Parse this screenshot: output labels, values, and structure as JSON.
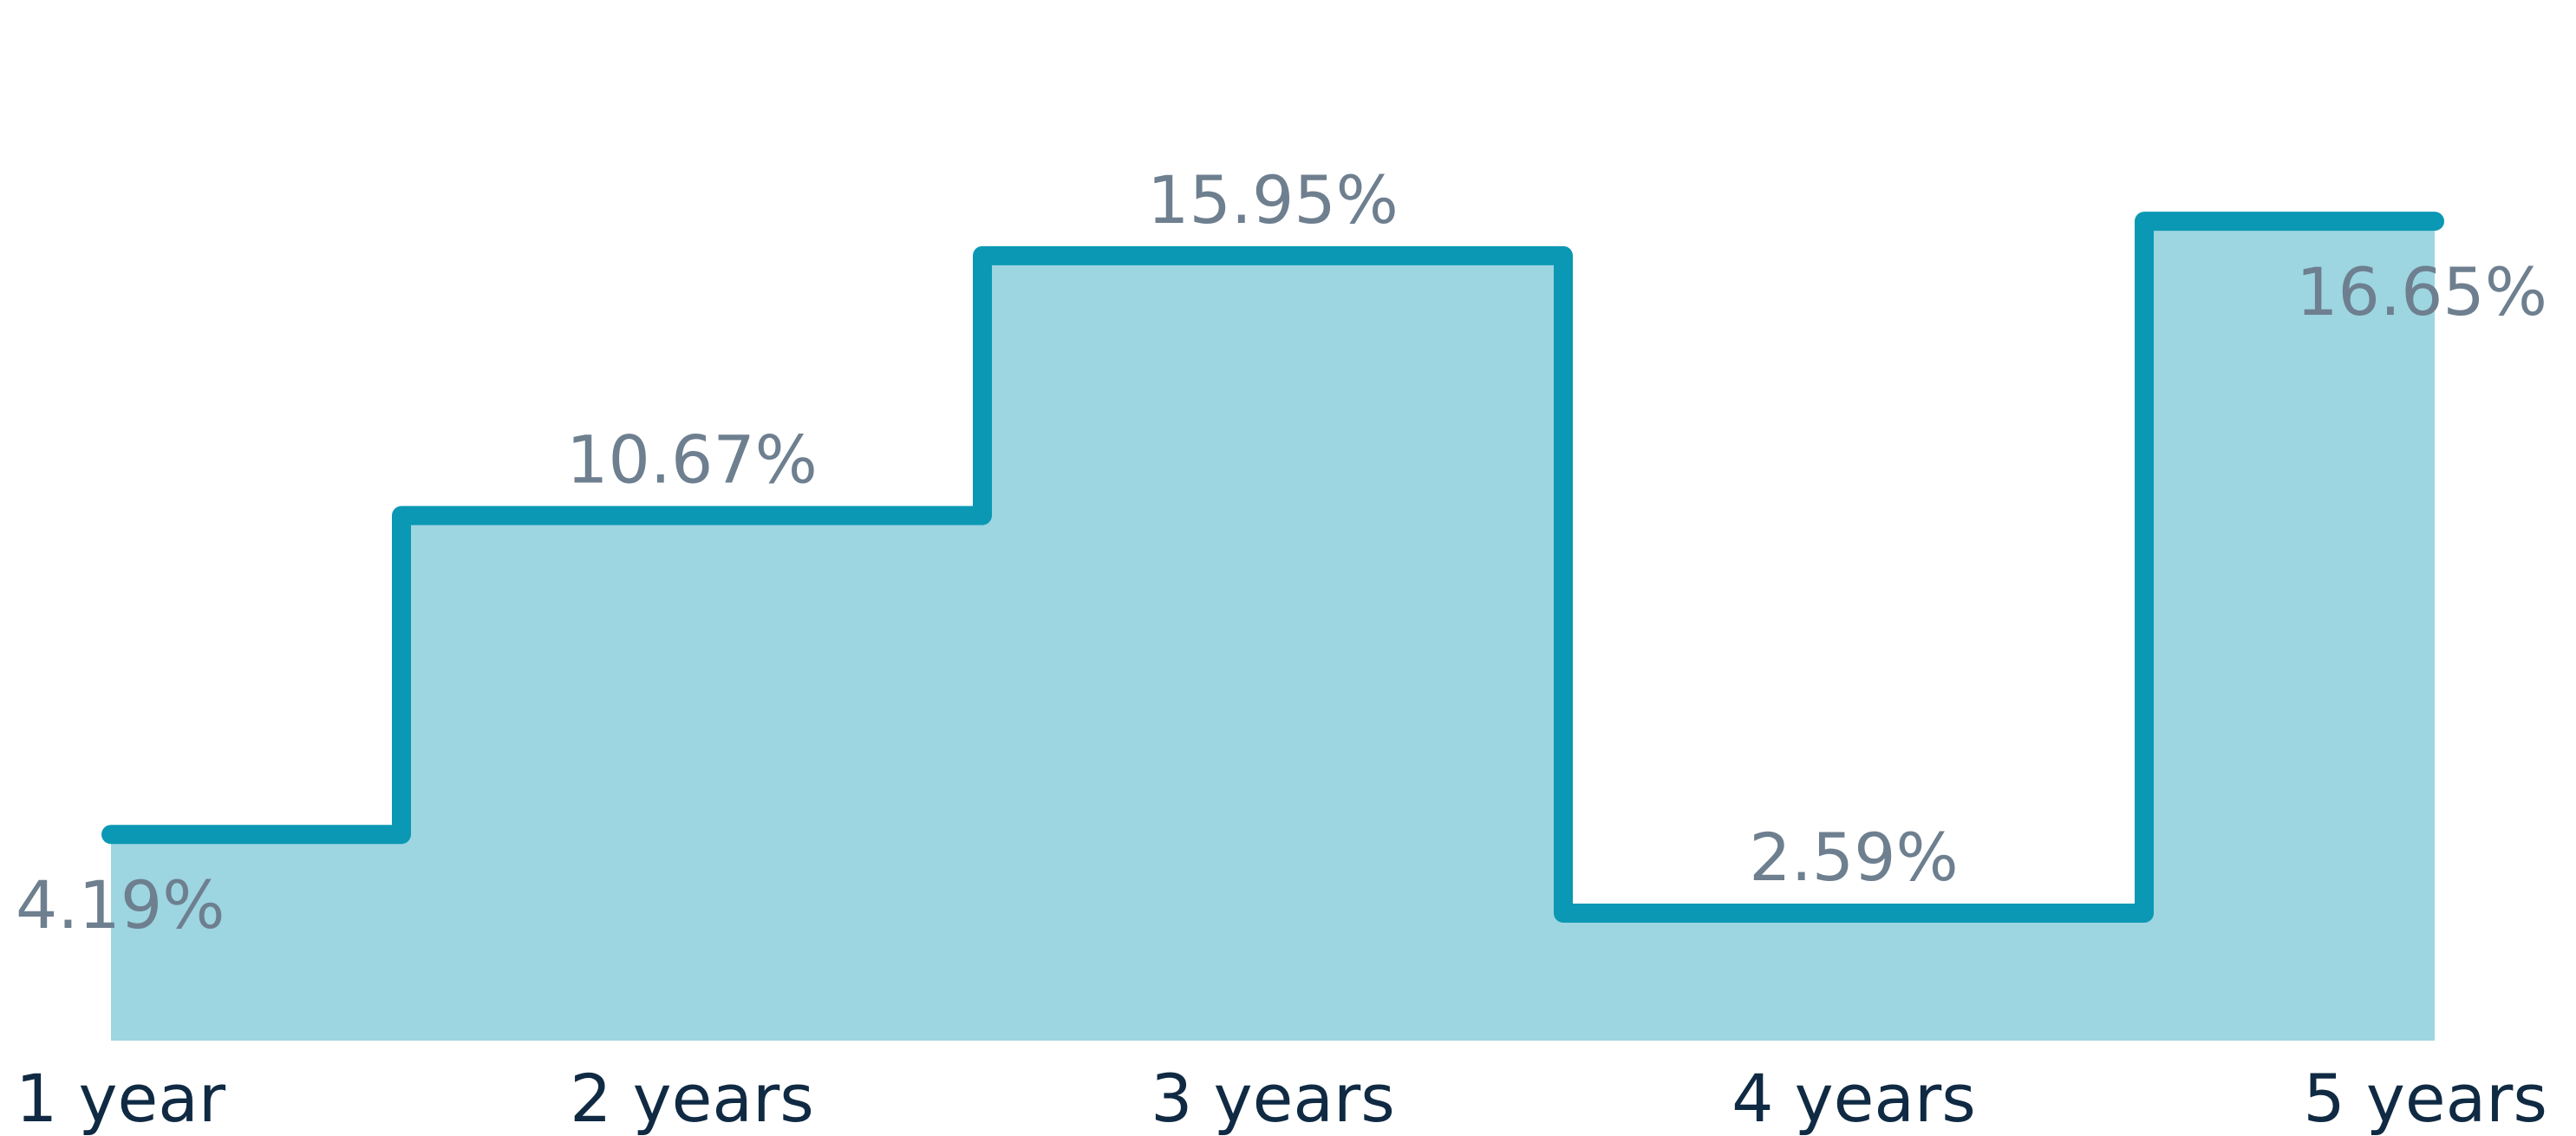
{
  "chart_data": {
    "type": "area",
    "step": "post",
    "categories": [
      "1 year",
      "2 years",
      "3 years",
      "4 years",
      "5 years"
    ],
    "values": [
      4.19,
      10.67,
      15.95,
      2.59,
      16.65
    ],
    "value_labels": [
      "4.19%",
      "10.67%",
      "15.95%",
      "2.59%",
      "16.65%"
    ],
    "title": "",
    "xlabel": "",
    "ylabel": "",
    "ylim": [
      0,
      17.3
    ],
    "grid": false,
    "legend": "none",
    "colors": {
      "line": "#0a98b4",
      "fill": "#9dd5e0",
      "value_label": "#6e7f8f",
      "tick_label": "#102a43"
    }
  }
}
